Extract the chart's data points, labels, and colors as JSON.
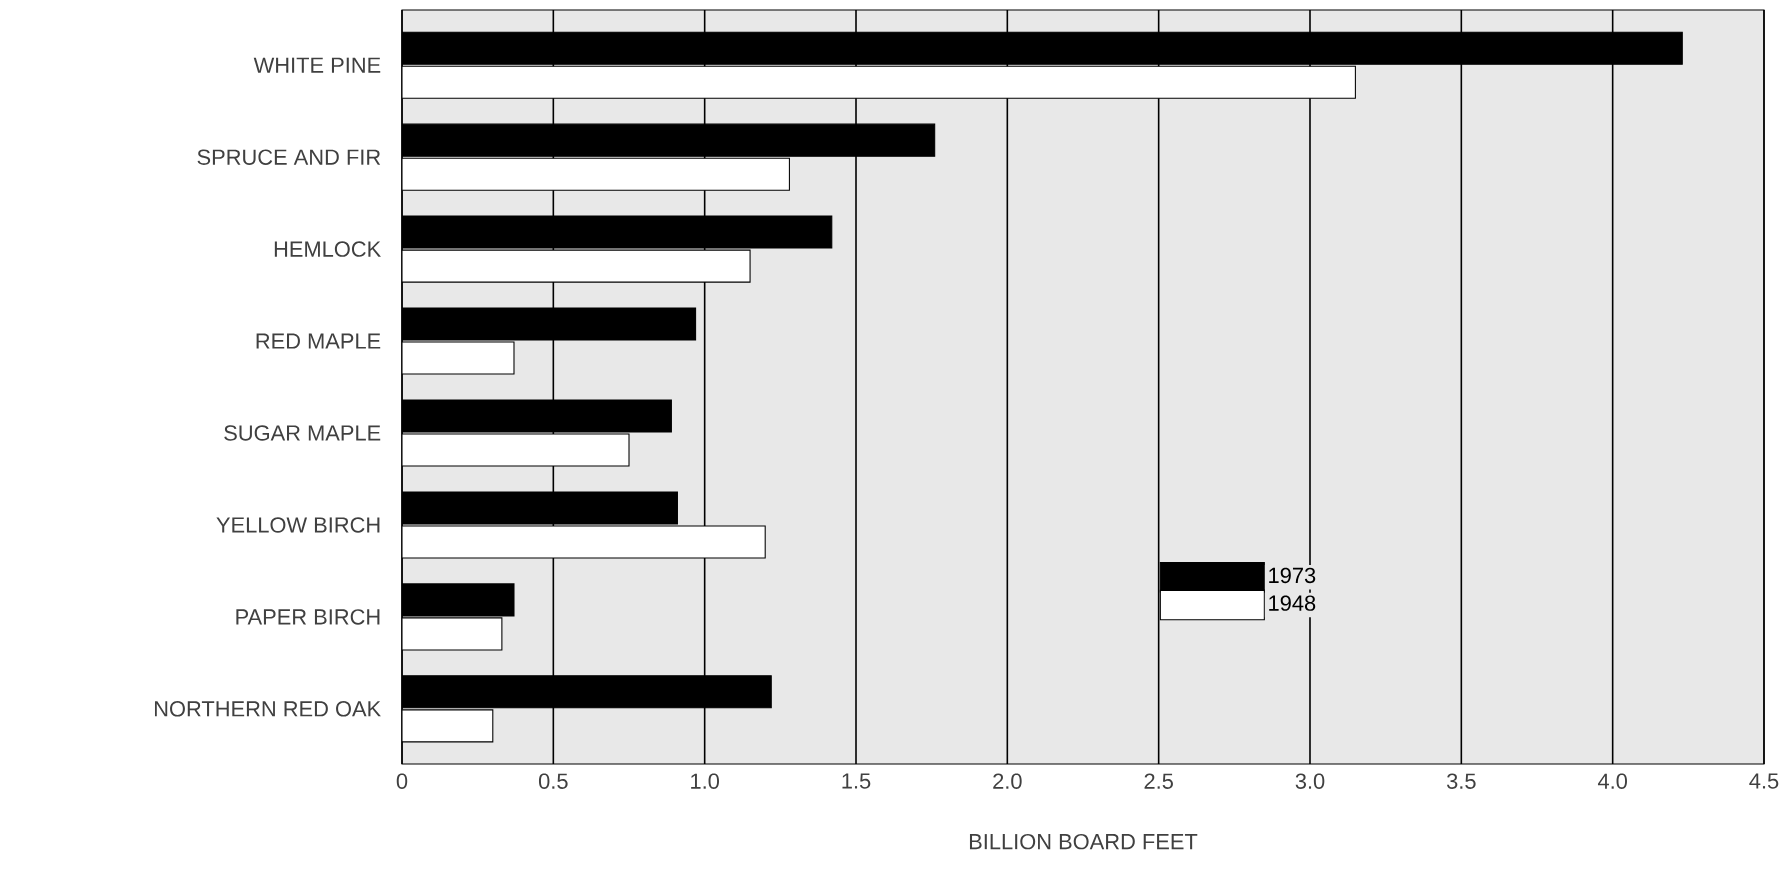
{
  "chart_data": {
    "type": "bar",
    "orientation": "horizontal",
    "xlabel": "BILLION BOARD FEET",
    "categories": [
      "WHITE PINE",
      "SPRUCE AND FIR",
      "HEMLOCK",
      "RED MAPLE",
      "SUGAR MAPLE",
      "YELLOW BIRCH",
      "PAPER BIRCH",
      "NORTHERN RED OAK"
    ],
    "series": [
      {
        "name": "1973",
        "color": "#000000",
        "values": [
          4.23,
          1.76,
          1.42,
          0.97,
          0.89,
          0.91,
          0.37,
          1.22
        ]
      },
      {
        "name": "1948",
        "color": "#ffffff",
        "values": [
          3.15,
          1.28,
          1.15,
          0.37,
          0.75,
          1.2,
          0.33,
          0.3
        ]
      }
    ],
    "xlim": [
      0,
      4.5
    ],
    "xticks": [
      0,
      0.5,
      {
        "value": 1,
        "label": "1.0"
      },
      1.5,
      {
        "value": 2,
        "label": "2.0"
      },
      2.5,
      {
        "value": 3,
        "label": "3.0"
      },
      3.5,
      {
        "value": 4,
        "label": "4.0"
      },
      4.5
    ],
    "grid": "x",
    "legend": "bottom"
  }
}
